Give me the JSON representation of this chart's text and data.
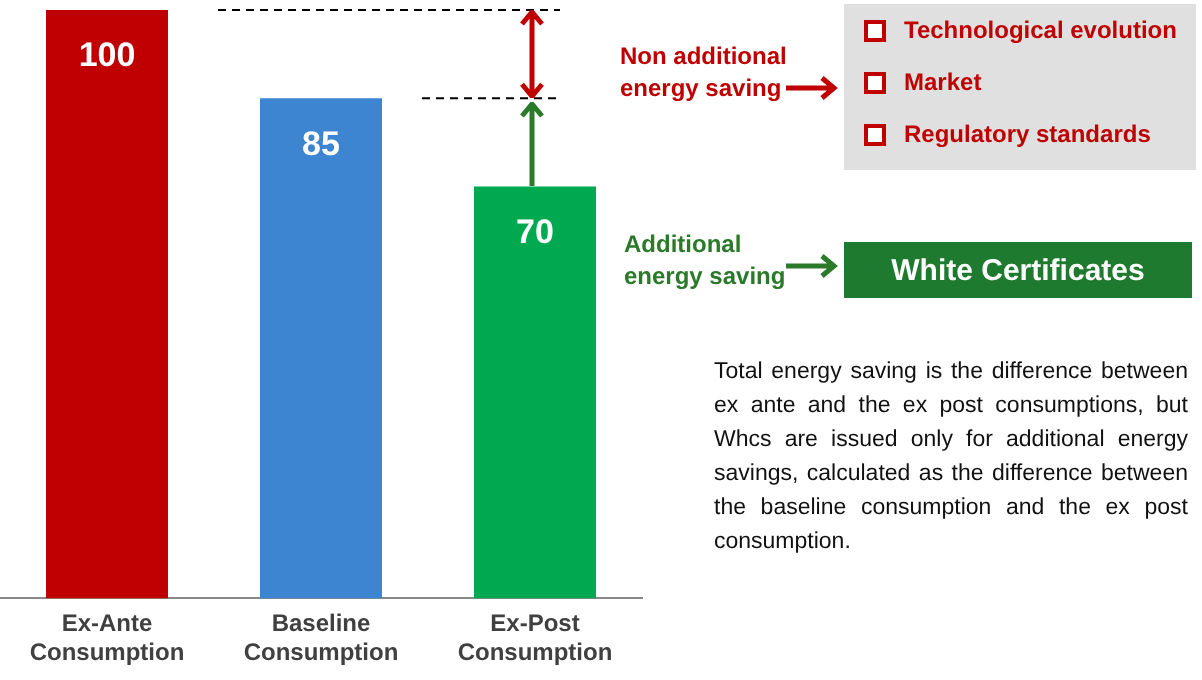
{
  "chart_data": {
    "type": "bar",
    "categories": [
      "Ex-Ante Consumption",
      "Baseline Consumption",
      "Ex-Post Consumption"
    ],
    "values": [
      100,
      85,
      70
    ],
    "colors": [
      "#c00000",
      "#3d85d1",
      "#00a94f"
    ],
    "data_labels": true,
    "grid": false,
    "legend": false,
    "annotations": [
      "Non additional energy saving",
      "Technological evolution",
      "Market",
      "Regulatory standards",
      "Additional energy saving",
      "White Certificates",
      "Total energy saving is the difference between ex ante and the ex post consumptions, but Whcs are issued only for additional energy savings, calculated as the difference between the baseline consumption and the ex post consumption."
    ]
  }
}
